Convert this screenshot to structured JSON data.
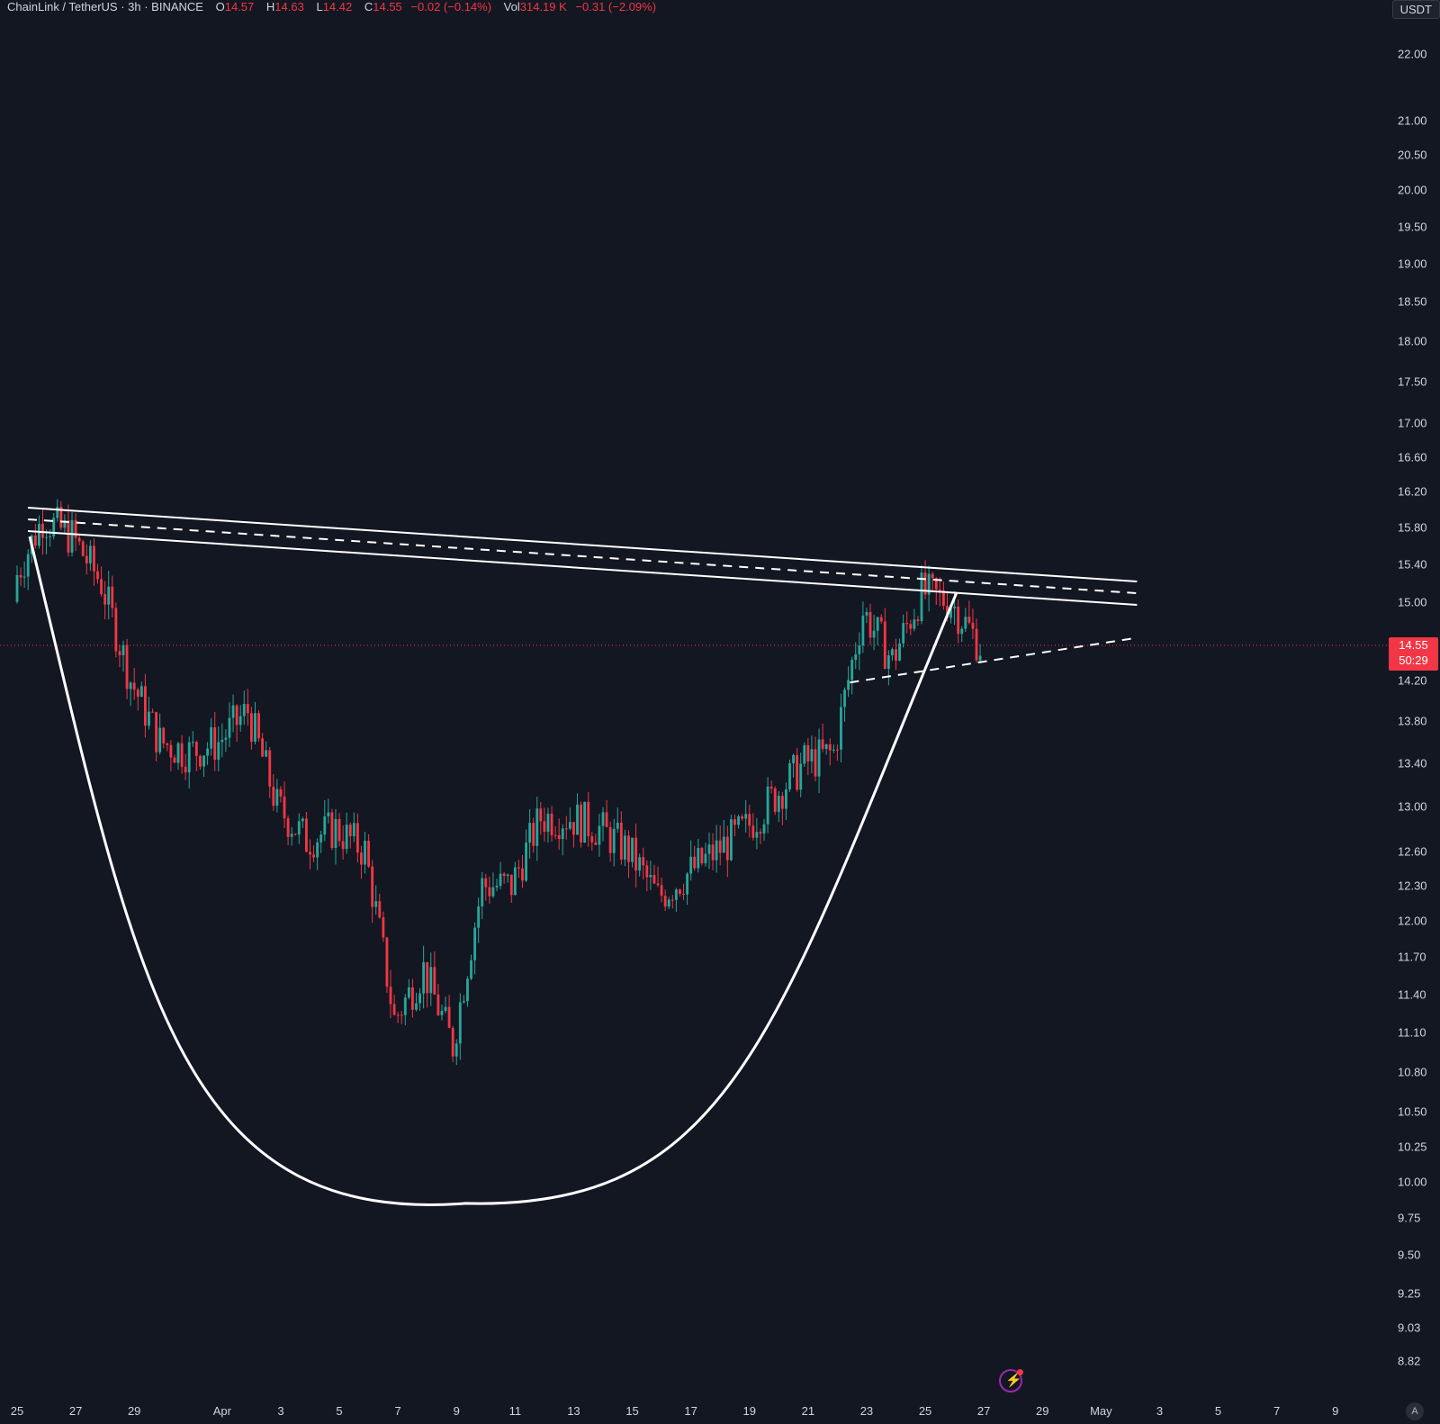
{
  "header": {
    "symbol": "ChainLink / TetherUS · 3h · BINANCE",
    "open_label": "O",
    "open": "14.57",
    "high_label": "H",
    "high": "14.63",
    "low_label": "L",
    "low": "14.42",
    "close_label": "C",
    "close": "14.55",
    "change": "−0.02 (−0.14%)",
    "vol_label": "Vol",
    "vol": "314.19 K",
    "vol_change": "−0.31 (−2.09%)"
  },
  "currency": "USDT",
  "last_price": {
    "price": "14.55",
    "countdown": "50:29"
  },
  "colors": {
    "background": "#131722",
    "up": "#26a69a",
    "down": "#f23645",
    "drawing": "#ffffff",
    "text": "#d1d4dc"
  },
  "chart_data": {
    "type": "candlestick",
    "title": "ChainLink / TetherUS · 3h · BINANCE",
    "y_scale": "log",
    "y_ticks": [
      "22.00",
      "21.00",
      "20.50",
      "20.00",
      "19.50",
      "19.00",
      "18.50",
      "18.00",
      "17.50",
      "17.00",
      "16.60",
      "16.20",
      "15.80",
      "15.40",
      "15.00",
      "14.20",
      "13.80",
      "13.40",
      "13.00",
      "12.60",
      "12.30",
      "12.00",
      "11.70",
      "11.40",
      "11.10",
      "10.80",
      "10.50",
      "10.25",
      "10.00",
      "9.75",
      "9.50",
      "9.25",
      "9.03",
      "8.82"
    ],
    "x_ticks": [
      "25",
      "27",
      "29",
      "Apr",
      "3",
      "5",
      "7",
      "9",
      "11",
      "13",
      "15",
      "17",
      "19",
      "21",
      "23",
      "25",
      "27",
      "29",
      "May",
      "3",
      "5",
      "7",
      "9"
    ],
    "series_close_daily": [
      {
        "x": "Mar 25",
        "close": 15.2
      },
      {
        "x": "Mar 26",
        "close": 15.9
      },
      {
        "x": "Mar 27",
        "close": 15.7
      },
      {
        "x": "Mar 28",
        "close": 15.2
      },
      {
        "x": "Mar 29",
        "close": 14.2
      },
      {
        "x": "Mar 30",
        "close": 13.6
      },
      {
        "x": "Mar 31",
        "close": 13.5
      },
      {
        "x": "Apr 1",
        "close": 13.6
      },
      {
        "x": "Apr 2",
        "close": 13.9
      },
      {
        "x": "Apr 3",
        "close": 13.0
      },
      {
        "x": "Apr 4",
        "close": 12.7
      },
      {
        "x": "Apr 5",
        "close": 12.8
      },
      {
        "x": "Apr 6",
        "close": 12.6
      },
      {
        "x": "Apr 7",
        "close": 11.2
      },
      {
        "x": "Apr 8",
        "close": 11.6
      },
      {
        "x": "Apr 9",
        "close": 11.0
      },
      {
        "x": "Apr 10",
        "close": 12.3
      },
      {
        "x": "Apr 11",
        "close": 12.3
      },
      {
        "x": "Apr 12",
        "close": 12.9
      },
      {
        "x": "Apr 13",
        "close": 12.9
      },
      {
        "x": "Apr 14",
        "close": 12.8
      },
      {
        "x": "Apr 15",
        "close": 12.6
      },
      {
        "x": "Apr 16",
        "close": 12.2
      },
      {
        "x": "Apr 17",
        "close": 12.4
      },
      {
        "x": "Apr 18",
        "close": 12.6
      },
      {
        "x": "Apr 19",
        "close": 12.8
      },
      {
        "x": "Apr 20",
        "close": 13.1
      },
      {
        "x": "Apr 21",
        "close": 13.4
      },
      {
        "x": "Apr 22",
        "close": 13.5
      },
      {
        "x": "Apr 23",
        "close": 14.9
      },
      {
        "x": "Apr 24",
        "close": 14.4
      },
      {
        "x": "Apr 25",
        "close": 15.1
      },
      {
        "x": "Apr 26",
        "close": 15.0
      },
      {
        "x": "Apr 27",
        "close": 14.55
      }
    ],
    "drawings": [
      {
        "type": "parallel-channel",
        "from": {
          "x": "Mar 25",
          "y": 15.9
        },
        "to": {
          "x": "May 1",
          "y": 15.1
        }
      },
      {
        "type": "cup-curve",
        "start": {
          "x": "Mar 25",
          "y": 15.7
        },
        "bottom": {
          "x": "Apr 9",
          "y": 9.85
        },
        "end": {
          "x": "Apr 25",
          "y": 15.1
        }
      },
      {
        "type": "dashed-trendline",
        "from": {
          "x": "Apr 22",
          "y": 14.0
        },
        "to": {
          "x": "May 1",
          "y": 14.6
        }
      }
    ],
    "grid": false
  }
}
